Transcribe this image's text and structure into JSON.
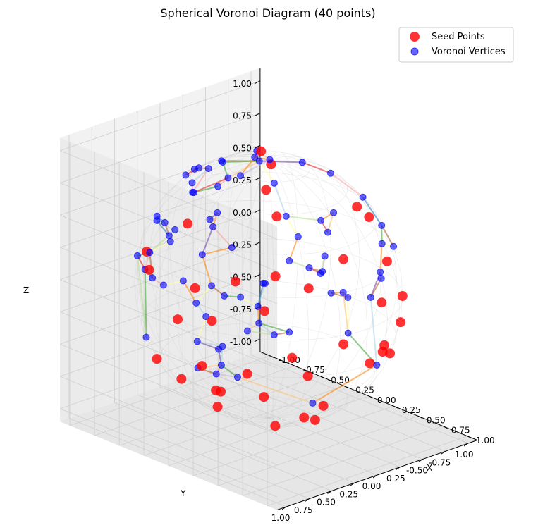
{
  "chart_data": {
    "type": "scatter",
    "title": "Spherical Voronoi Diagram (40 points)",
    "xlabel": "X",
    "ylabel": "Y",
    "zlabel": "Z",
    "xlim": [
      -1.1,
      1.1
    ],
    "ylim": [
      -1.1,
      1.1
    ],
    "zlim": [
      -1.1,
      1.1
    ],
    "xticks": [
      "-1.00",
      "-0.75",
      "-0.50",
      "-0.25",
      "0.00",
      "0.25",
      "0.50",
      "0.75",
      "1.00"
    ],
    "yticks": [
      "-1.00",
      "-0.75",
      "-0.50",
      "-0.25",
      "0.00",
      "0.25",
      "0.50",
      "0.75",
      "1.00"
    ],
    "zticks": [
      "-1.00",
      "-0.75",
      "-0.50",
      "-0.25",
      "0.00",
      "0.25",
      "0.50",
      "0.75",
      "1.00"
    ],
    "tick_values": [
      -1.0,
      -0.75,
      -0.5,
      -0.25,
      0.0,
      0.25,
      0.5,
      0.75,
      1.0
    ],
    "grid": true,
    "legend_position": "top-right",
    "series": [
      {
        "name": "Seed Points",
        "color": "#ff0000",
        "marker": "circle-large",
        "points": [
          [
            -0.17,
            -0.1,
            0.99
          ],
          [
            0.25,
            0.3,
            0.92
          ],
          [
            0.07,
            0.05,
            1.0
          ],
          [
            0.45,
            0.4,
            0.8
          ],
          [
            0.59,
            -0.33,
            0.74
          ],
          [
            0.63,
            -0.42,
            0.65
          ],
          [
            -0.13,
            0.75,
            0.65
          ],
          [
            0.82,
            0.45,
            0.37
          ],
          [
            0.64,
            0.62,
            0.45
          ],
          [
            0.85,
            0.1,
            0.52
          ],
          [
            0.64,
            0.74,
            0.21
          ],
          [
            0.13,
            0.95,
            0.28
          ],
          [
            0.42,
            0.82,
            0.39
          ],
          [
            0.97,
            -0.19,
            0.15
          ],
          [
            0.84,
            -0.39,
            0.38
          ],
          [
            0.3,
            0.95,
            0.08
          ],
          [
            -0.4,
            0.88,
            0.24
          ],
          [
            0.97,
            0.23,
            -0.07
          ],
          [
            0.52,
            0.8,
            -0.3
          ],
          [
            0.56,
            0.66,
            -0.5
          ],
          [
            0.0,
            1.0,
            0.01
          ],
          [
            -0.95,
            0.31,
            0.07
          ],
          [
            0.72,
            -0.69,
            0.0
          ],
          [
            0.82,
            -0.56,
            -0.14
          ],
          [
            -0.1,
            0.85,
            -0.52
          ],
          [
            0.38,
            0.34,
            -0.86
          ],
          [
            0.86,
            -0.4,
            -0.33
          ],
          [
            0.23,
            0.83,
            -0.51
          ],
          [
            0.23,
            -0.14,
            -0.96
          ],
          [
            0.95,
            -0.08,
            -0.3
          ],
          [
            -0.45,
            0.74,
            -0.5
          ],
          [
            0.27,
            0.82,
            -0.51
          ],
          [
            -0.25,
            0.29,
            -0.92
          ],
          [
            -0.63,
            0.05,
            -0.78
          ],
          [
            0.51,
            -0.7,
            -0.5
          ],
          [
            0.5,
            -0.73,
            -0.46
          ],
          [
            0.25,
            -0.33,
            -0.91
          ],
          [
            -0.1,
            -0.54,
            -0.84
          ],
          [
            0.59,
            0.13,
            -0.8
          ],
          [
            0.79,
            0.6,
            -0.14
          ]
        ]
      },
      {
        "name": "Voronoi Vertices",
        "color": "#0000ff",
        "marker": "circle-small",
        "points": [
          [
            -0.29,
            0.19,
            0.94
          ],
          [
            -0.09,
            0.46,
            0.88
          ],
          [
            -0.26,
            0.54,
            0.8
          ],
          [
            -0.07,
            0.37,
            0.93
          ],
          [
            -0.64,
            0.12,
            0.76
          ],
          [
            -0.67,
            0.04,
            0.74
          ],
          [
            -0.72,
            -0.12,
            0.68
          ],
          [
            -0.92,
            0.23,
            0.3
          ],
          [
            -0.91,
            0.24,
            0.34
          ],
          [
            0.79,
            0.24,
            0.56
          ],
          [
            0.07,
            0.64,
            0.77
          ],
          [
            0.04,
            0.69,
            0.72
          ],
          [
            0.11,
            0.85,
            0.51
          ],
          [
            -0.23,
            0.78,
            0.58
          ],
          [
            0.67,
            0.5,
            0.55
          ],
          [
            -0.5,
            -0.39,
            0.77
          ],
          [
            -0.45,
            -0.5,
            0.74
          ],
          [
            0.49,
            0.34,
            0.8
          ],
          [
            0.12,
            -0.24,
            0.96
          ],
          [
            0.31,
            0.74,
            0.6
          ],
          [
            -0.33,
            0.16,
            0.93
          ],
          [
            0.64,
            0.12,
            0.76
          ],
          [
            0.63,
            -0.03,
            0.78
          ],
          [
            0.83,
            0.31,
            0.47
          ],
          [
            0.98,
            0.19,
            0.01
          ],
          [
            0.6,
            0.69,
            0.4
          ],
          [
            -0.35,
            -0.25,
            0.9
          ],
          [
            -0.03,
            0.07,
            1.0
          ],
          [
            -0.7,
            -0.45,
            0.55
          ],
          [
            0.42,
            -0.58,
            0.7
          ],
          [
            0.93,
            0.19,
            0.31
          ],
          [
            0.25,
            0.21,
            0.95
          ],
          [
            0.71,
            0.12,
            0.69
          ],
          [
            0.1,
            0.72,
            0.69
          ],
          [
            0.95,
            0.16,
            0.27
          ],
          [
            0.26,
            -0.4,
            0.88
          ],
          [
            -0.6,
            0.26,
            0.76
          ],
          [
            0.9,
            0.29,
            0.32
          ],
          [
            0.59,
            0.7,
            0.4
          ],
          [
            -0.46,
            0.86,
            0.22
          ],
          [
            0.37,
            0.89,
            0.28
          ],
          [
            -0.96,
            0.1,
            0.24
          ],
          [
            -0.83,
            -0.06,
            0.55
          ],
          [
            0.77,
            -0.41,
            0.49
          ],
          [
            0.35,
            0.93,
            -0.13
          ],
          [
            -0.23,
            0.83,
            0.5
          ],
          [
            -0.89,
            -0.13,
            0.44
          ],
          [
            0.6,
            0.77,
            0.24
          ],
          [
            0.9,
            -0.25,
            0.35
          ],
          [
            0.18,
            0.98,
            -0.11
          ],
          [
            -0.73,
            0.65,
            0.19
          ],
          [
            0.16,
            0.97,
            0.18
          ],
          [
            0.01,
            0.95,
            0.3
          ],
          [
            0.83,
            0.33,
            0.46
          ],
          [
            -0.99,
            0.02,
            0.11
          ],
          [
            0.26,
            0.91,
            0.33
          ],
          [
            0.62,
            0.78,
            0.12
          ],
          [
            0.97,
            -0.07,
            0.22
          ],
          [
            -0.33,
            0.92,
            0.21
          ],
          [
            0.48,
            0.83,
            0.29
          ],
          [
            0.77,
            0.39,
            0.5
          ],
          [
            -0.44,
            0.83,
            0.35
          ],
          [
            0.92,
            -0.24,
            0.31
          ],
          [
            0.62,
            -0.7,
            0.35
          ],
          [
            0.71,
            0.71,
            0.04
          ],
          [
            0.63,
            0.36,
            0.69
          ],
          [
            -0.18,
            0.96,
            0.21
          ],
          [
            0.78,
            0.62,
            0.06
          ],
          [
            0.61,
            -0.58,
            0.54
          ],
          [
            0.25,
            0.96,
            0.1
          ],
          [
            0.55,
            0.83,
            0.05
          ],
          [
            0.38,
            0.92,
            -0.1
          ],
          [
            -0.53,
            0.77,
            -0.35
          ],
          [
            0.35,
            0.9,
            -0.26
          ],
          [
            0.45,
            0.83,
            -0.34
          ],
          [
            0.92,
            -0.19,
            -0.35
          ],
          [
            0.75,
            0.33,
            -0.57
          ],
          [
            0.14,
            0.93,
            -0.34
          ],
          [
            0.29,
            0.89,
            -0.35
          ]
        ]
      }
    ],
    "edge_colors": [
      "#a6cee3",
      "#1f78b4",
      "#b2df8a",
      "#33a02c",
      "#fb9a99",
      "#e31a1c",
      "#fdbf6f",
      "#ff7f00",
      "#cab2d6",
      "#6a3d9a",
      "#ffff99",
      "#b15928"
    ]
  }
}
